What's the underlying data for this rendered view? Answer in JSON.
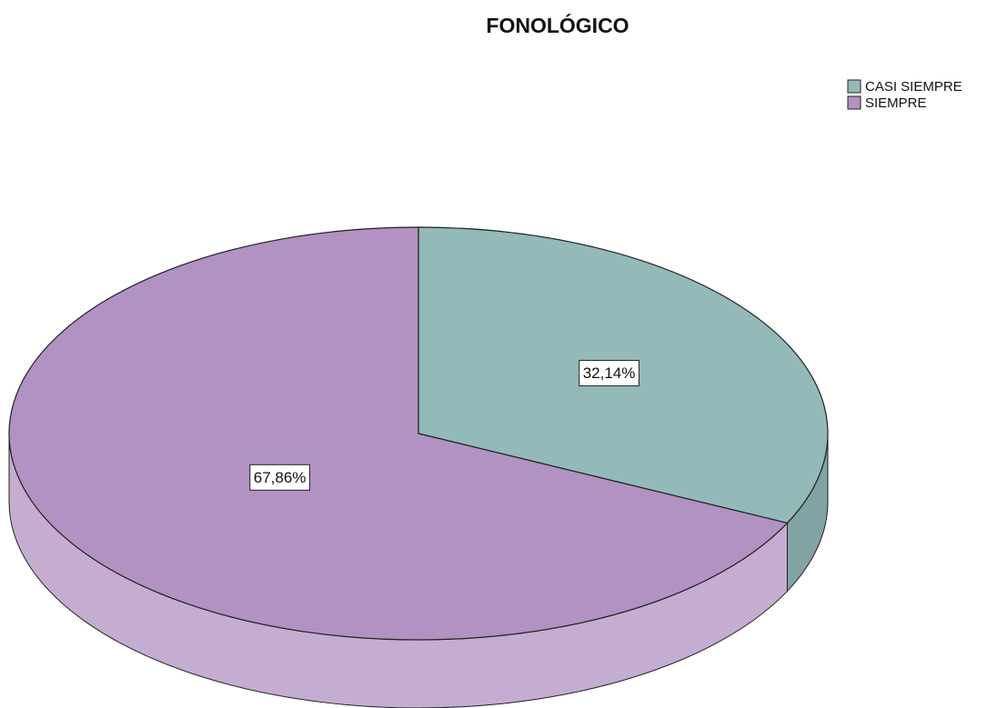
{
  "chart_data": {
    "type": "pie",
    "title": "FONOLÓGICO",
    "categories": [
      "CASI SIEMPRE",
      "SIEMPRE"
    ],
    "values": [
      32.14,
      67.86
    ],
    "value_labels": [
      "32,14%",
      "67,86%"
    ],
    "colors": [
      "#93b9b9",
      "#b192c2"
    ],
    "legend": "top-right"
  }
}
